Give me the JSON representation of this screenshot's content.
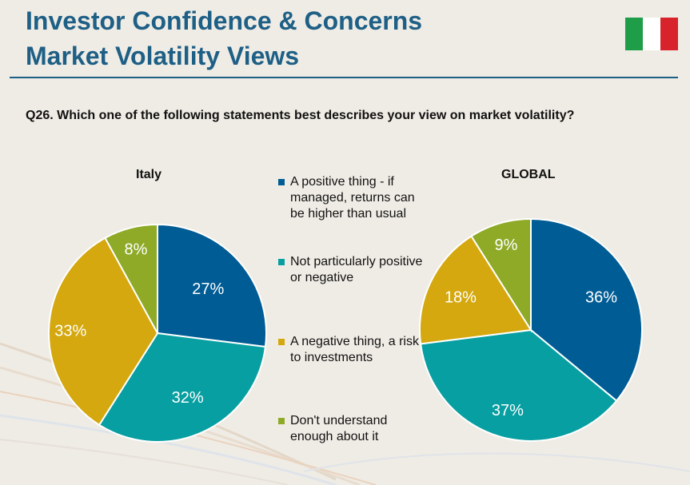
{
  "header": {
    "title_line1": "Investor Confidence & Concerns",
    "title_line2": "Market Volatility Views"
  },
  "flag": {
    "name": "italy-flag",
    "colors": [
      "#1e9e48",
      "#ffffff",
      "#d8232c"
    ]
  },
  "question": "Q26. Which one of the following statements best describes your view on market volatility?",
  "colors": {
    "positive": "#005c94",
    "neutral": "#079fa1",
    "negative": "#d4a80e",
    "dont_understand": "#8eaa26",
    "title": "#1e5f86"
  },
  "legend": [
    "A positive thing - if managed, returns can be higher than usual",
    "Not particularly positive or negative",
    "A negative thing, a risk to investments",
    "Don't understand enough about it"
  ],
  "chart_data": [
    {
      "type": "pie",
      "title": "Italy",
      "categories": [
        "A positive thing - if managed, returns can be higher than usual",
        "Not particularly positive or negative",
        "A negative thing, a risk to investments",
        "Don't understand enough about it"
      ],
      "values": [
        27,
        32,
        33,
        8
      ],
      "labels": [
        "27%",
        "32%",
        "33%",
        "8%"
      ]
    },
    {
      "type": "pie",
      "title": "GLOBAL",
      "categories": [
        "A positive thing - if managed, returns can be higher than usual",
        "Not particularly positive or negative",
        "A negative thing, a risk to investments",
        "Don't understand enough about it"
      ],
      "values": [
        36,
        37,
        18,
        9
      ],
      "labels": [
        "36%",
        "37%",
        "18%",
        "9%"
      ]
    }
  ]
}
